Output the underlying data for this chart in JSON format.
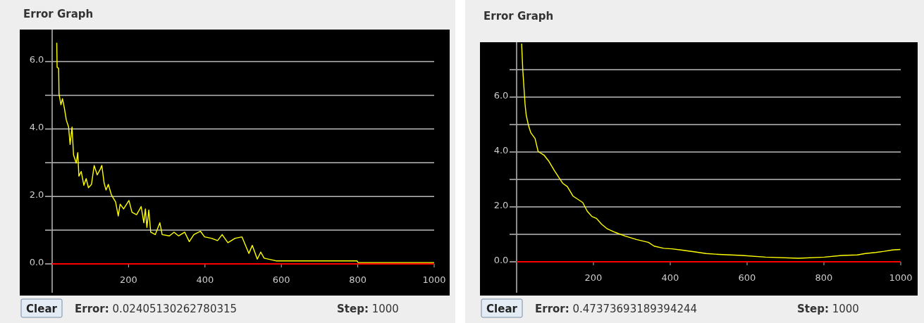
{
  "chart_data": [
    {
      "type": "line",
      "title": "Error Graph",
      "xlim": [
        0,
        1000
      ],
      "ylim": [
        0,
        6.95
      ],
      "xticks": [
        200,
        400,
        600,
        800,
        1000
      ],
      "yticks": [
        {
          "value": 0,
          "label": "0.0"
        },
        {
          "value": 1,
          "label": null
        },
        {
          "value": 2,
          "label": "2.0"
        },
        {
          "value": 3,
          "label": null
        },
        {
          "value": 4,
          "label": "4.0"
        },
        {
          "value": 5,
          "label": null
        },
        {
          "value": 6,
          "label": "6.0"
        }
      ],
      "grid": "y",
      "annotations": [
        "Clear",
        "Error: 0.02405130262780315",
        "Step: 1000"
      ],
      "series": [
        {
          "color": "#ffff00",
          "x": [
            12,
            13,
            17,
            18,
            23,
            27,
            32,
            37,
            43,
            47,
            52,
            56,
            63,
            67,
            70,
            76,
            83,
            89,
            95,
            103,
            110,
            118,
            126,
            130,
            136,
            141,
            147,
            155,
            166,
            173,
            178,
            187,
            201,
            209,
            221,
            233,
            240,
            244,
            248,
            253,
            258,
            270,
            282,
            288,
            307,
            319,
            331,
            347,
            359,
            371,
            388,
            399,
            417,
            433,
            445,
            460,
            479,
            497,
            515,
            524,
            537,
            546,
            555,
            586,
            798,
            801,
            1000
          ],
          "values": [
            6.56,
            5.83,
            5.8,
            5.03,
            4.72,
            4.9,
            4.62,
            4.27,
            4.06,
            3.54,
            4.06,
            3.23,
            2.99,
            3.3,
            2.6,
            2.74,
            2.33,
            2.53,
            2.26,
            2.36,
            2.92,
            2.64,
            2.81,
            2.92,
            2.4,
            2.19,
            2.36,
            2.05,
            1.84,
            1.42,
            1.77,
            1.63,
            1.88,
            1.53,
            1.46,
            1.7,
            1.22,
            1.63,
            1.08,
            1.6,
            0.94,
            0.87,
            1.22,
            0.87,
            0.83,
            0.94,
            0.83,
            0.94,
            0.66,
            0.87,
            0.97,
            0.8,
            0.76,
            0.69,
            0.87,
            0.63,
            0.76,
            0.8,
            0.31,
            0.55,
            0.14,
            0.35,
            0.17,
            0.09,
            0.09,
            0.04,
            0.04
          ]
        }
      ]
    },
    {
      "type": "line",
      "title": "Error Graph",
      "xlim": [
        0,
        1000
      ],
      "ylim": [
        0,
        8
      ],
      "xticks": [
        200,
        400,
        600,
        800,
        1000
      ],
      "yticks": [
        {
          "value": 0,
          "label": "0.0"
        },
        {
          "value": 1,
          "label": null
        },
        {
          "value": 2,
          "label": "2.0"
        },
        {
          "value": 3,
          "label": null
        },
        {
          "value": 4,
          "label": "4.0"
        },
        {
          "value": 5,
          "label": null
        },
        {
          "value": 6,
          "label": "6.0"
        },
        {
          "value": 7,
          "label": null
        }
      ],
      "grid": "y",
      "annotations": [
        "Clear",
        "Error: 0.47373693189394244",
        "Step: 1000"
      ],
      "series": [
        {
          "color": "#ffff00",
          "x": [
            13,
            16,
            19,
            22,
            25,
            31,
            37,
            48,
            56,
            71,
            83,
            98,
            112,
            120,
            132,
            147,
            172,
            184,
            196,
            208,
            221,
            236,
            257,
            282,
            312,
            343,
            358,
            383,
            404,
            428,
            465,
            493,
            526,
            587,
            648,
            734,
            801,
            847,
            887,
            908,
            935,
            957,
            978,
            999
          ],
          "values": [
            7.95,
            7.01,
            6.37,
            5.73,
            5.34,
            4.96,
            4.7,
            4.49,
            4.02,
            3.89,
            3.68,
            3.33,
            3.03,
            2.86,
            2.74,
            2.39,
            2.16,
            1.84,
            1.65,
            1.58,
            1.37,
            1.2,
            1.07,
            0.94,
            0.81,
            0.71,
            0.57,
            0.49,
            0.47,
            0.43,
            0.36,
            0.3,
            0.27,
            0.23,
            0.17,
            0.13,
            0.17,
            0.23,
            0.25,
            0.3,
            0.34,
            0.38,
            0.43,
            0.45
          ]
        }
      ]
    }
  ]
}
